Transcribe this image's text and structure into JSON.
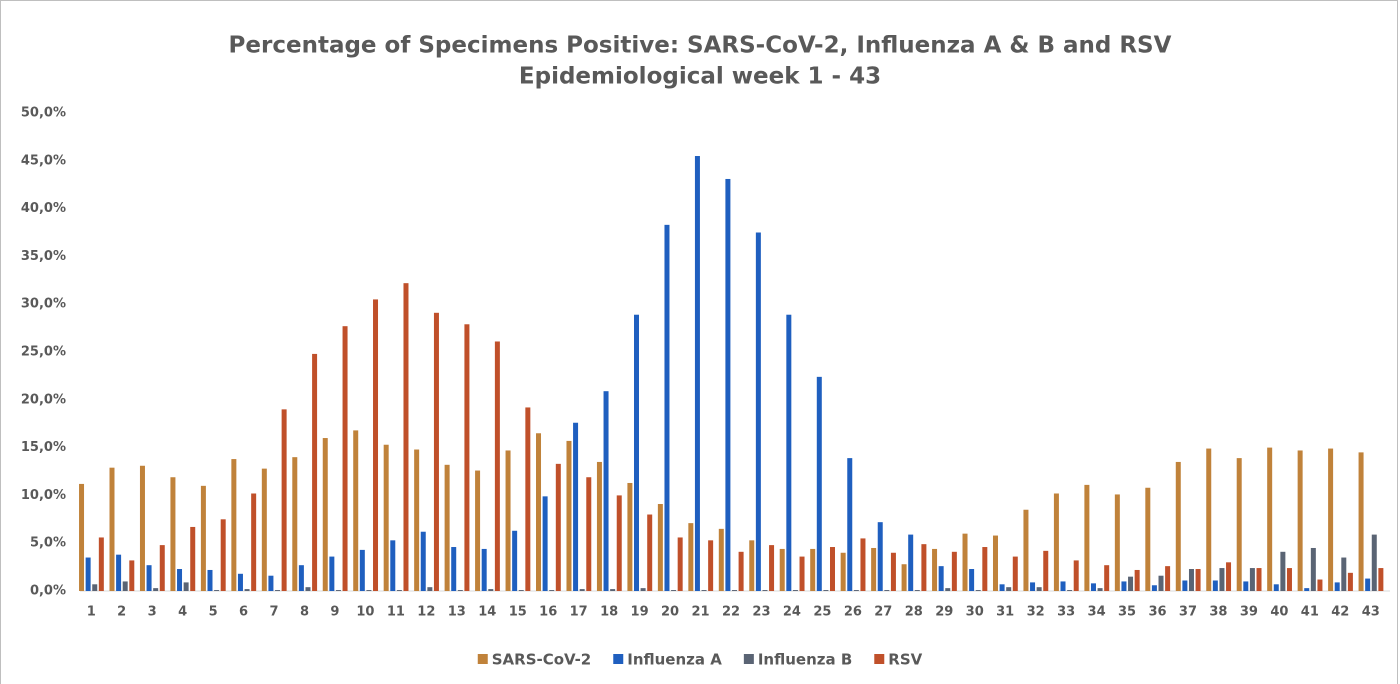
{
  "chart_data": {
    "type": "bar",
    "title": "Percentage of Specimens Positive: SARS-CoV-2, Influenza A & B and RSV",
    "subtitle": "Epidemiological week 1 - 43",
    "categories": [
      "1",
      "2",
      "3",
      "4",
      "5",
      "6",
      "7",
      "8",
      "9",
      "10",
      "11",
      "12",
      "13",
      "14",
      "15",
      "16",
      "17",
      "18",
      "19",
      "20",
      "21",
      "22",
      "23",
      "24",
      "25",
      "26",
      "27",
      "28",
      "29",
      "30",
      "31",
      "32",
      "33",
      "34",
      "35",
      "36",
      "37",
      "38",
      "39",
      "40",
      "41",
      "42",
      "43"
    ],
    "series": [
      {
        "name": "SARS-CoV-2",
        "color": "#c0823a",
        "values": [
          11.2,
          12.9,
          13.1,
          11.9,
          11.0,
          13.8,
          12.8,
          14.0,
          16.0,
          16.8,
          15.3,
          14.8,
          13.2,
          12.6,
          14.7,
          16.5,
          15.7,
          13.5,
          11.3,
          9.1,
          7.1,
          6.5,
          5.3,
          4.4,
          4.4,
          4.0,
          4.5,
          2.8,
          4.4,
          6.0,
          5.8,
          8.5,
          10.2,
          11.1,
          10.1,
          10.8,
          13.5,
          14.9,
          13.9,
          15.0,
          14.7,
          14.9,
          14.5
        ]
      },
      {
        "name": "Influenza A",
        "color": "#1f5fbf",
        "values": [
          3.5,
          3.8,
          2.7,
          2.3,
          2.2,
          1.8,
          1.6,
          2.7,
          3.6,
          4.3,
          5.3,
          6.2,
          4.6,
          4.4,
          6.3,
          9.9,
          17.6,
          20.9,
          28.9,
          38.3,
          45.5,
          43.1,
          37.5,
          28.9,
          22.4,
          13.9,
          7.2,
          5.9,
          2.6,
          2.3,
          0.7,
          0.9,
          1.0,
          0.8,
          1.0,
          0.6,
          1.1,
          1.1,
          1.0,
          0.7,
          0.3,
          0.9,
          1.3
        ]
      },
      {
        "name": "Influenza B",
        "color": "#5a6474",
        "values": [
          0.7,
          1.0,
          0.3,
          0.9,
          0.1,
          0.2,
          0.1,
          0.4,
          0.1,
          0.1,
          0.1,
          0.4,
          0.1,
          0.2,
          0.1,
          0.1,
          0.2,
          0.2,
          0.3,
          0.1,
          0.1,
          0.1,
          0.1,
          0.1,
          0.1,
          0.1,
          0.1,
          0.1,
          0.3,
          0.1,
          0.4,
          0.4,
          0.1,
          0.3,
          1.5,
          1.6,
          2.3,
          2.4,
          2.4,
          4.1,
          4.5,
          3.5,
          5.9
        ]
      },
      {
        "name": "RSV",
        "color": "#c0502a",
        "values": [
          5.6,
          3.2,
          4.8,
          6.7,
          7.5,
          10.2,
          19.0,
          24.8,
          27.7,
          30.5,
          32.2,
          29.1,
          27.9,
          26.1,
          19.2,
          13.3,
          11.9,
          10.0,
          8.0,
          5.6,
          5.3,
          4.1,
          4.8,
          3.6,
          4.6,
          5.5,
          4.0,
          4.9,
          4.1,
          4.6,
          3.6,
          4.2,
          3.2,
          2.7,
          2.2,
          2.6,
          2.3,
          3.0,
          2.4,
          2.4,
          1.2,
          1.9,
          2.4
        ]
      }
    ],
    "ylim": [
      0,
      50
    ],
    "yticks": [
      {
        "value": 0,
        "label": "0,0%"
      },
      {
        "value": 5,
        "label": "5,0%"
      },
      {
        "value": 10,
        "label": "10,0%"
      },
      {
        "value": 15,
        "label": "15,0%"
      },
      {
        "value": 20,
        "label": "20,0%"
      },
      {
        "value": 25,
        "label": "25,0%"
      },
      {
        "value": 30,
        "label": "30,0%"
      },
      {
        "value": 35,
        "label": "35,0%"
      },
      {
        "value": 40,
        "label": "40,0%"
      },
      {
        "value": 45,
        "label": "45,0%"
      },
      {
        "value": 50,
        "label": "50,0%"
      }
    ],
    "grid": false,
    "legend": "bottom"
  }
}
